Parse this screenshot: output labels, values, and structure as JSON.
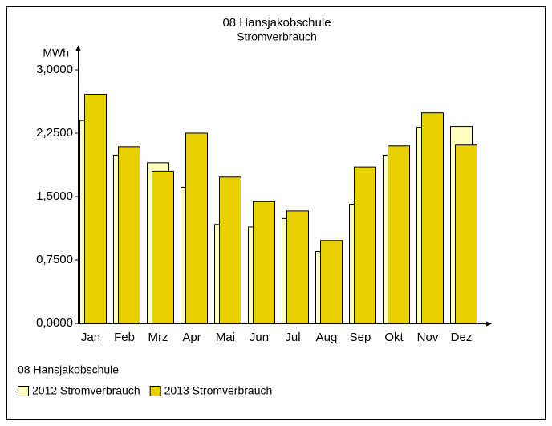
{
  "chart_data": {
    "type": "bar",
    "title": "08 Hansjakobschule",
    "subtitle": "Stromverbrauch",
    "y_label": "MWh",
    "categories": [
      "Jan",
      "Feb",
      "Mrz",
      "Apr",
      "Mai",
      "Jun",
      "Jul",
      "Aug",
      "Sep",
      "Okt",
      "Nov",
      "Dez"
    ],
    "series": [
      {
        "name": "2012 Stromverbrauch",
        "color": "#ffffc0",
        "values": [
          2.4,
          1.99,
          1.9,
          1.61,
          1.17,
          1.14,
          1.24,
          0.85,
          1.41,
          1.99,
          2.32,
          2.33
        ]
      },
      {
        "name": "2013 Stromverbrauch",
        "color": "#e8d000",
        "values": [
          2.71,
          2.09,
          1.8,
          2.25,
          1.73,
          1.44,
          1.33,
          0.98,
          1.85,
          2.1,
          2.49,
          2.11
        ]
      }
    ],
    "ylim": [
      0,
      3
    ],
    "yticks": [
      {
        "value": 0,
        "label": "0,0000"
      },
      {
        "value": 0.75,
        "label": "0,7500"
      },
      {
        "value": 1.5,
        "label": "1,5000"
      },
      {
        "value": 2.25,
        "label": "2,2500"
      },
      {
        "value": 3,
        "label": "3,0000"
      }
    ],
    "legend_title": "08 Hansjakobschule",
    "legend": "bottom-left"
  }
}
